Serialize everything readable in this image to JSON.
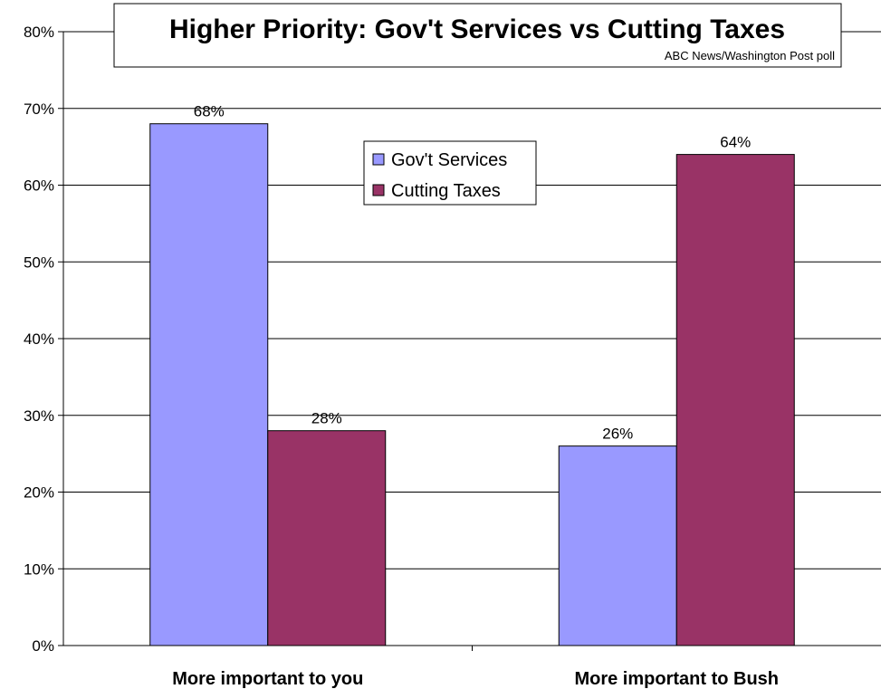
{
  "chart_data": {
    "type": "bar",
    "title": "Higher Priority: Gov't Services vs Cutting Taxes",
    "subtitle": "ABC News/Washington Post poll",
    "categories": [
      "More important to you",
      "More important to Bush"
    ],
    "series": [
      {
        "name": "Gov't Services",
        "color": "#9999FF",
        "values": [
          68,
          26
        ],
        "labels": [
          "68%",
          "26%"
        ]
      },
      {
        "name": "Cutting Taxes",
        "color": "#993366",
        "values": [
          28,
          64
        ],
        "labels": [
          "28%",
          "64%"
        ]
      }
    ],
    "ylim": [
      0,
      80
    ],
    "yticks": [
      0,
      10,
      20,
      30,
      40,
      50,
      60,
      70,
      80
    ],
    "ytick_labels": [
      "0%",
      "10%",
      "20%",
      "30%",
      "40%",
      "50%",
      "60%",
      "70%",
      "80%"
    ],
    "grid": true,
    "legend": "top-center"
  }
}
